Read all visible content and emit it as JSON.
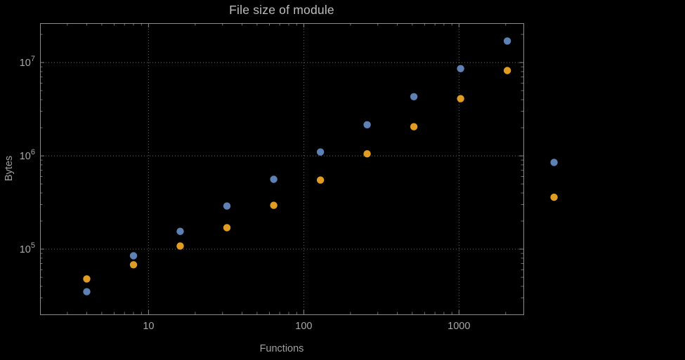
{
  "chart_data": {
    "type": "scatter",
    "title": "File size of module",
    "xlabel": "Functions",
    "ylabel": "Bytes",
    "x_scale": "log",
    "y_scale": "log",
    "xlim": [
      2,
      2600
    ],
    "ylim": [
      20000,
      26400000
    ],
    "x_ticks": [
      10,
      100,
      1000
    ],
    "x_tick_labels": [
      "10",
      "100",
      "1000"
    ],
    "y_ticks": [
      100000,
      1000000,
      10000000
    ],
    "y_tick_exponents": [
      "5",
      "6",
      "7"
    ],
    "grid": "dotted-major-decades",
    "legend": "none",
    "x": [
      4,
      8,
      16,
      32,
      64,
      128,
      256,
      512,
      1024,
      2048,
      4096
    ],
    "series": [
      {
        "name": "series-blue",
        "color": "#5e81b5",
        "values": [
          35000,
          85000,
          155000,
          290000,
          560000,
          1100000,
          2150000,
          4300000,
          8600000,
          17000000,
          850000
        ]
      },
      {
        "name": "series-orange",
        "color": "#e19c24",
        "values": [
          48000,
          68000,
          108000,
          170000,
          295000,
          550000,
          1050000,
          2050000,
          4100000,
          8200000,
          360000
        ]
      }
    ],
    "colors": {
      "background": "#000000",
      "frame": "#8a8a8a",
      "grid": "#7d7d7d",
      "tick_text": "#a8a8a8",
      "title_text": "#bdbdbd",
      "axis_label_text": "#a0a0a0"
    }
  }
}
